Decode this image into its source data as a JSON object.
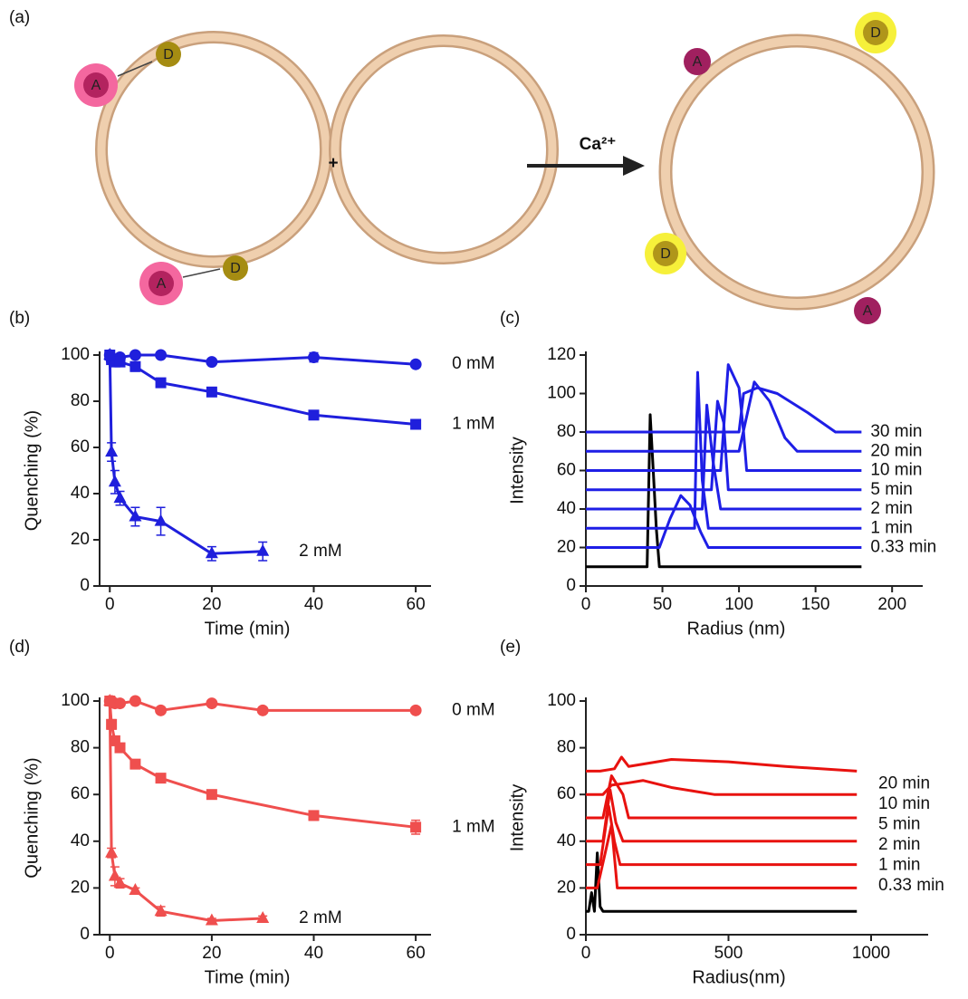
{
  "diagram": {
    "panel_label": "(a)",
    "plus": "+",
    "reagent": "Ca²⁺",
    "molecules": [
      {
        "label": "A"
      },
      {
        "label": "D"
      },
      {
        "label": "A"
      },
      {
        "label": "D"
      },
      {
        "label": "A"
      },
      {
        "label": "D"
      },
      {
        "label": "D"
      },
      {
        "label": "A"
      }
    ]
  },
  "chart_data": [
    {
      "type": "line",
      "panel_label": "(b)",
      "x_label": "Time (min)",
      "y_label": "Quenching (%)",
      "xlim": [
        -2,
        63
      ],
      "ylim": [
        0,
        100
      ],
      "xticks": [
        0,
        20,
        40,
        60
      ],
      "yticks": [
        0,
        20,
        40,
        60,
        80,
        100
      ],
      "series": [
        {
          "name": "0 mM",
          "color": "#1f1fdc",
          "marker": "circle",
          "x": [
            0,
            0.33,
            1,
            2,
            5,
            10,
            20,
            40,
            60
          ],
          "values": [
            100,
            98,
            98,
            99,
            100,
            100,
            97,
            99,
            96
          ],
          "errors": [
            2,
            2,
            1,
            1,
            1,
            1,
            1,
            2,
            1
          ]
        },
        {
          "name": "1 mM",
          "color": "#1f1fdc",
          "marker": "square",
          "x": [
            0,
            0.33,
            1,
            2,
            5,
            10,
            20,
            40,
            60
          ],
          "values": [
            100,
            98,
            97,
            97,
            95,
            88,
            84,
            74,
            70
          ],
          "errors": [
            2,
            2,
            2,
            2,
            2,
            1,
            1,
            1,
            2
          ]
        },
        {
          "name": "2 mM",
          "color": "#1f1fdc",
          "marker": "triangle",
          "x": [
            0,
            0.33,
            1,
            2,
            5,
            10,
            20,
            30
          ],
          "values": [
            100,
            58,
            45,
            38,
            30,
            28,
            14,
            15
          ],
          "errors": [
            2,
            4,
            5,
            3,
            4,
            6,
            3,
            4
          ]
        }
      ]
    },
    {
      "type": "line",
      "panel_label": "(c)",
      "x_label": "Radius (nm)",
      "y_label": "Intensity",
      "xlim": [
        0,
        220
      ],
      "ylim": [
        0,
        120
      ],
      "xticks": [
        0,
        50,
        100,
        150,
        200
      ],
      "yticks": [
        0,
        20,
        40,
        60,
        80,
        100,
        120
      ],
      "series": [
        {
          "color": "#000000",
          "x": [
            0,
            40,
            42,
            44,
            46,
            48,
            180
          ],
          "values": [
            10,
            10,
            89,
            60,
            30,
            10,
            10
          ]
        },
        {
          "name": "0.33 min",
          "color": "#1e1ee6",
          "x": [
            0,
            48,
            55,
            62,
            68,
            75,
            80,
            180
          ],
          "values": [
            20,
            20,
            35,
            47,
            42,
            28,
            20,
            20
          ]
        },
        {
          "name": "1 min",
          "color": "#1e1ee6",
          "x": [
            0,
            71,
            73,
            76,
            80,
            180
          ],
          "values": [
            30,
            30,
            111,
            55,
            30,
            30
          ]
        },
        {
          "name": "2 min",
          "color": "#1e1ee6",
          "x": [
            0,
            76,
            79,
            83,
            88,
            180
          ],
          "values": [
            40,
            40,
            94,
            65,
            40,
            40
          ]
        },
        {
          "name": "5 min",
          "color": "#1e1ee6",
          "x": [
            0,
            82,
            86,
            90,
            93,
            180
          ],
          "values": [
            50,
            50,
            96,
            85,
            50,
            50
          ]
        },
        {
          "name": "10 min",
          "color": "#1e1ee6",
          "x": [
            0,
            88,
            93,
            100,
            103,
            105,
            180
          ],
          "values": [
            60,
            60,
            115,
            103,
            80,
            60,
            60
          ]
        },
        {
          "name": "20 min",
          "color": "#1e1ee6",
          "x": [
            0,
            100,
            110,
            120,
            130,
            138,
            180
          ],
          "values": [
            70,
            70,
            106,
            96,
            77,
            70,
            70
          ]
        },
        {
          "name": "30 min",
          "color": "#1e1ee6",
          "x": [
            0,
            100,
            103,
            112,
            125,
            145,
            163,
            180
          ],
          "values": [
            80,
            80,
            100,
            103,
            100,
            90,
            80,
            80
          ]
        }
      ]
    },
    {
      "type": "line",
      "panel_label": "(d)",
      "x_label": "Time (min)",
      "y_label": "Quenching (%)",
      "xlim": [
        -2,
        63
      ],
      "ylim": [
        0,
        100
      ],
      "xticks": [
        0,
        20,
        40,
        60
      ],
      "yticks": [
        0,
        20,
        40,
        60,
        80,
        100
      ],
      "series": [
        {
          "name": "0 mM",
          "color": "#ef4f4e",
          "marker": "circle",
          "x": [
            0,
            0.33,
            1,
            2,
            5,
            10,
            20,
            30,
            60
          ],
          "values": [
            100,
            100,
            99,
            99,
            100,
            96,
            99,
            96,
            96
          ],
          "errors": [
            1,
            1,
            1,
            1,
            1,
            1,
            1,
            1,
            1
          ]
        },
        {
          "name": "1 mM",
          "color": "#ef4f4e",
          "marker": "square",
          "x": [
            0,
            0.33,
            1,
            2,
            5,
            10,
            20,
            40,
            60
          ],
          "values": [
            100,
            90,
            83,
            80,
            73,
            67,
            60,
            51,
            46
          ],
          "errors": [
            1,
            2,
            2,
            1,
            1,
            1,
            1,
            2,
            3
          ]
        },
        {
          "name": "2 mM",
          "color": "#ef4f4e",
          "marker": "triangle",
          "x": [
            0,
            0.33,
            1,
            2,
            5,
            10,
            20,
            30
          ],
          "values": [
            100,
            35,
            25,
            22,
            19,
            10,
            6,
            7
          ],
          "errors": [
            1,
            2,
            4,
            2,
            1,
            2,
            1,
            1
          ]
        }
      ]
    },
    {
      "type": "line",
      "panel_label": "(e)",
      "x_label": "Radius(nm)",
      "y_label": "Intensity",
      "xlim": [
        0,
        1200
      ],
      "ylim": [
        0,
        100
      ],
      "xticks": [
        0,
        500,
        1000
      ],
      "yticks": [
        0,
        20,
        40,
        60,
        80,
        100
      ],
      "series": [
        {
          "color": "#000000",
          "x": [
            0,
            10,
            20,
            30,
            40,
            50,
            60,
            950
          ],
          "values": [
            10,
            10,
            18,
            10,
            35,
            12,
            10,
            10
          ]
        },
        {
          "name": "0.33 min",
          "color": "#e8120f",
          "x": [
            0,
            40,
            90,
            110,
            950
          ],
          "values": [
            20,
            20,
            47,
            20,
            20
          ]
        },
        {
          "name": "1 min",
          "color": "#e8120f",
          "x": [
            0,
            50,
            80,
            100,
            120,
            950
          ],
          "values": [
            30,
            30,
            55,
            40,
            30,
            30
          ]
        },
        {
          "name": "2 min",
          "color": "#e8120f",
          "x": [
            0,
            60,
            85,
            105,
            130,
            950
          ],
          "values": [
            40,
            40,
            62,
            48,
            40,
            40
          ]
        },
        {
          "name": "5 min",
          "color": "#e8120f",
          "x": [
            0,
            60,
            90,
            130,
            150,
            950
          ],
          "values": [
            50,
            50,
            68,
            60,
            50,
            50
          ]
        },
        {
          "name": "10 min",
          "color": "#e8120f",
          "x": [
            0,
            60,
            90,
            150,
            200,
            300,
            450,
            950
          ],
          "values": [
            60,
            60,
            64,
            65,
            66,
            63,
            60,
            60
          ]
        },
        {
          "name": "20 min",
          "color": "#e8120f",
          "x": [
            0,
            50,
            100,
            125,
            150,
            300,
            500,
            700,
            950
          ],
          "values": [
            70,
            70,
            71,
            76,
            72,
            75,
            74,
            72,
            70
          ]
        }
      ]
    }
  ]
}
